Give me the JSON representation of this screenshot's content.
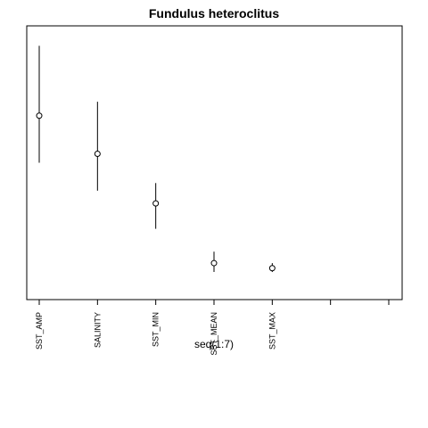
{
  "chart_data": {
    "type": "scatter",
    "title": "Fundulus heteroclitus",
    "xlabel": "seq(1:7)",
    "ylabel": "",
    "categories": [
      "SST_AMP",
      "SALINITY",
      "SST_MIN",
      "SST_MEAN",
      "SST_MAX",
      "",
      ""
    ],
    "x": [
      1,
      2,
      3,
      4,
      5
    ],
    "values": [
      0.685,
      0.535,
      0.34,
      0.105,
      0.085
    ],
    "lower": [
      0.5,
      0.39,
      0.24,
      0.07,
      0.07
    ],
    "upper": [
      0.96,
      0.74,
      0.42,
      0.15,
      0.105
    ],
    "xlim": [
      1,
      7
    ],
    "ylim": [
      0,
      1
    ],
    "grid": false
  }
}
